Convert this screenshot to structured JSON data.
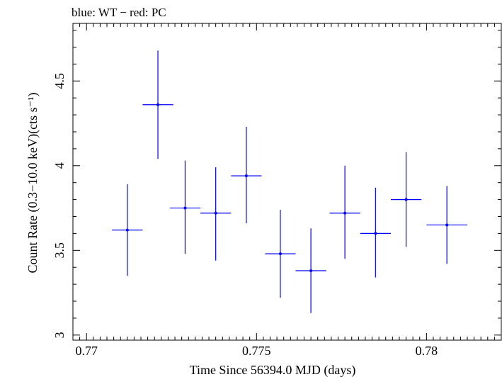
{
  "chart_data": {
    "type": "scatter",
    "title": "blue: WT − red: PC",
    "xlabel": "Time Since 56394.0 MJD (days)",
    "ylabel": "Count Rate (0.3−10.0 keV)(cts s⁻¹)",
    "xlim": [
      0.7696,
      0.7822
    ],
    "ylim": [
      2.97,
      4.84
    ],
    "x_ticks": [
      0.77,
      0.775,
      0.78
    ],
    "x_tick_labels": [
      "0.77",
      "0.775",
      "0.78"
    ],
    "y_ticks": [
      3,
      3.5,
      4,
      4.5
    ],
    "y_tick_labels": [
      "3",
      "3.5",
      "4",
      "4.5"
    ],
    "grid": false,
    "series": [
      {
        "color": "#0000ff",
        "points": [
          {
            "x": 0.7712,
            "y": 3.62,
            "xerr": 0.00045,
            "ylo": 3.35,
            "yhi": 3.89
          },
          {
            "x": 0.7721,
            "y": 4.36,
            "xerr": 0.00045,
            "ylo": 4.04,
            "yhi": 4.68
          },
          {
            "x": 0.7729,
            "y": 3.75,
            "xerr": 0.00045,
            "ylo": 3.48,
            "yhi": 4.03
          },
          {
            "x": 0.7738,
            "y": 3.72,
            "xerr": 0.00045,
            "ylo": 3.44,
            "yhi": 3.99
          },
          {
            "x": 0.7747,
            "y": 3.94,
            "xerr": 0.00045,
            "ylo": 3.66,
            "yhi": 4.23
          },
          {
            "x": 0.7757,
            "y": 3.48,
            "xerr": 0.00045,
            "ylo": 3.22,
            "yhi": 3.74
          },
          {
            "x": 0.7766,
            "y": 3.38,
            "xerr": 0.00045,
            "ylo": 3.13,
            "yhi": 3.63
          },
          {
            "x": 0.7776,
            "y": 3.72,
            "xerr": 0.00045,
            "ylo": 3.45,
            "yhi": 4.0
          },
          {
            "x": 0.7785,
            "y": 3.6,
            "xerr": 0.00045,
            "ylo": 3.34,
            "yhi": 3.87
          },
          {
            "x": 0.7794,
            "y": 3.8,
            "xerr": 0.00045,
            "ylo": 3.52,
            "yhi": 4.08
          },
          {
            "x": 0.7806,
            "y": 3.65,
            "xerr": 0.0006,
            "ylo": 3.42,
            "yhi": 3.88
          }
        ]
      }
    ]
  }
}
